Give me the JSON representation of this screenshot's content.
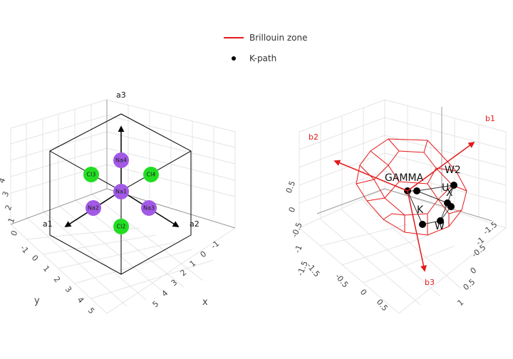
{
  "legend": {
    "items": [
      {
        "label": "Brillouin zone",
        "symbol": "line",
        "color": "#e31a1c"
      },
      {
        "label": "K-path",
        "symbol": "dot",
        "color": "#000000"
      }
    ]
  },
  "left_scene": {
    "lattice_vectors": [
      "a1",
      "a2",
      "a3"
    ],
    "atoms": [
      {
        "label": "Cl3",
        "element": "Cl",
        "color": "#22dd22"
      },
      {
        "label": "Na4",
        "element": "Na",
        "color": "#a259e6"
      },
      {
        "label": "Cl4",
        "element": "Cl",
        "color": "#22dd22"
      },
      {
        "label": "Na1",
        "element": "Na",
        "color": "#a259e6"
      },
      {
        "label": "Na2",
        "element": "Na",
        "color": "#a259e6"
      },
      {
        "label": "Na3",
        "element": "Na",
        "color": "#a259e6"
      },
      {
        "label": "Cl2",
        "element": "Cl",
        "color": "#22dd22"
      }
    ],
    "axes": {
      "x": {
        "title": "x",
        "ticks": [
          "-1",
          "0",
          "1",
          "2",
          "3",
          "4",
          "5"
        ]
      },
      "y": {
        "title": "y",
        "ticks": [
          "-1",
          "0",
          "1",
          "2",
          "3",
          "4",
          "5"
        ]
      },
      "z": {
        "ticks": [
          "0",
          "1",
          "2",
          "3",
          "4"
        ]
      }
    }
  },
  "right_scene": {
    "reciprocal_vectors": [
      "b1",
      "b2",
      "b3"
    ],
    "kpoint_labels": [
      "GAMMA",
      "W2",
      "X",
      "U",
      "K",
      "W"
    ],
    "axes": {
      "x": {
        "ticks": [
          "-1.5",
          "-1",
          "-0.5",
          "0",
          "0.5",
          "1"
        ]
      },
      "y": {
        "ticks": [
          "-1.5",
          "-1",
          "-0.5",
          "0",
          "0.5"
        ]
      },
      "z": {
        "ticks": [
          "-1.5",
          "-1",
          "-0.5",
          "0",
          "0.5"
        ]
      }
    }
  }
}
